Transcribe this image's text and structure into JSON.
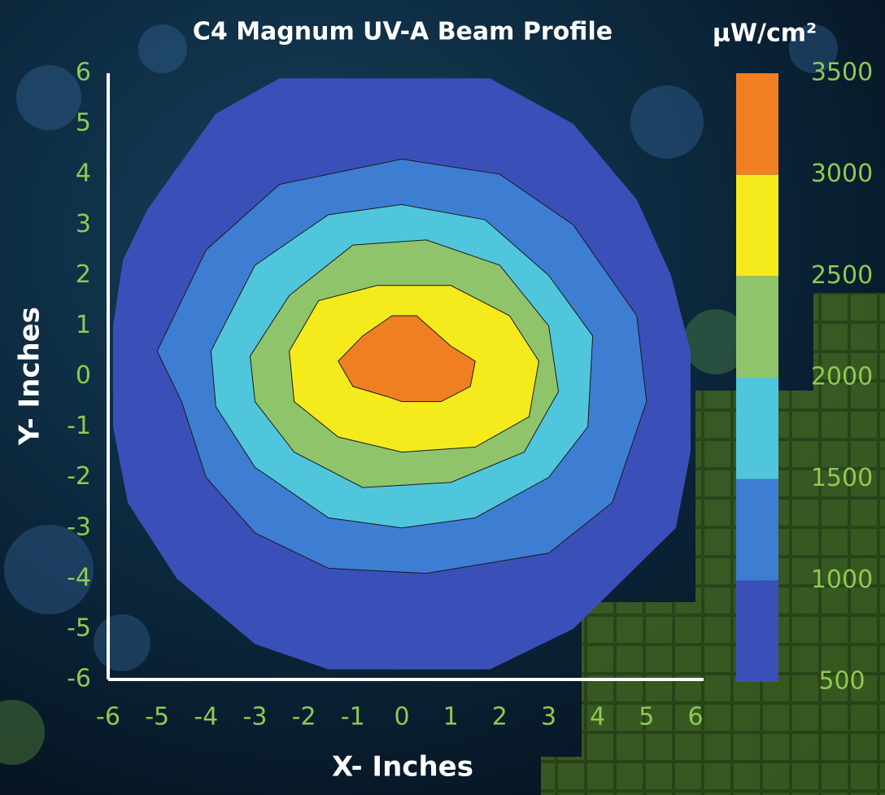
{
  "chart_data": {
    "type": "contour",
    "title": "C4 Magnum UV-A Beam Profile",
    "colorbar_label": "μW/cm²",
    "x_label": "X- Inches",
    "y_label": "Y- Inches",
    "xlim": [
      -6,
      6
    ],
    "ylim": [
      -6,
      6
    ],
    "xticks": [
      -6,
      -5,
      -4,
      -3,
      -2,
      -1,
      0,
      1,
      2,
      3,
      4,
      5,
      6
    ],
    "yticks": [
      -6,
      -5,
      -4,
      -3,
      -2,
      -1,
      0,
      1,
      2,
      3,
      4,
      5,
      6
    ],
    "colorbar_levels": [
      500,
      1000,
      1500,
      2000,
      2500,
      3000,
      3500
    ],
    "colorbar_colors": [
      "#3b4fb8",
      "#3d7ed2",
      "#4fc6dc",
      "#8fc46b",
      "#f5ea1c",
      "#f07f22"
    ],
    "regions": [
      {
        "level": 500,
        "color": "#3b4fb8",
        "x": [
          -1.5,
          1.8,
          3.5,
          5.6,
          5.9,
          5.9,
          5.5,
          4.8,
          3.5,
          1.8,
          -2.5,
          -3.8,
          -5.2,
          -5.7,
          -5.9,
          -5.9,
          -5.6,
          -4.6,
          -3
        ],
        "y": [
          -5.8,
          -5.8,
          -5,
          -3,
          -1.5,
          0.5,
          2,
          3.5,
          5,
          5.9,
          5.9,
          5.2,
          3.3,
          2.3,
          1,
          -1,
          -2.5,
          -4,
          -5.3
        ]
      },
      {
        "level": 1000,
        "color": "#3d7ed2",
        "x": [
          -5,
          -4,
          -2.5,
          0,
          2,
          3.5,
          4.8,
          5,
          4.3,
          3,
          0.5,
          -1.5,
          -3,
          -4,
          -4.5
        ],
        "y": [
          0.5,
          2.5,
          3.8,
          4.3,
          4,
          3,
          1.2,
          -0.5,
          -2.5,
          -3.5,
          -3.9,
          -3.8,
          -3.1,
          -2,
          -0.5
        ]
      },
      {
        "level": 1500,
        "color": "#4fc6dc",
        "x": [
          -3.9,
          -3,
          -1.5,
          0,
          1.7,
          3,
          3.9,
          3.8,
          3,
          1.5,
          0,
          -1.5,
          -3,
          -3.8
        ],
        "y": [
          0.5,
          2.2,
          3.2,
          3.4,
          3.1,
          2,
          0.8,
          -1,
          -2,
          -2.8,
          -3,
          -2.8,
          -1.8,
          -0.6
        ]
      },
      {
        "level": 2000,
        "color": "#8fc46b",
        "x": [
          -3.1,
          -2.3,
          -1,
          0.5,
          2,
          3,
          3.2,
          2.5,
          1,
          -0.8,
          -2.2,
          -3
        ],
        "y": [
          0.4,
          1.6,
          2.6,
          2.7,
          2.2,
          1,
          -0.3,
          -1.5,
          -2.1,
          -2.2,
          -1.5,
          -0.5
        ]
      },
      {
        "level": 2500,
        "color": "#f5ea1c",
        "x": [
          -2.3,
          -1.7,
          -0.5,
          1,
          2.2,
          2.8,
          2.6,
          1.5,
          0,
          -1.3,
          -2.2
        ],
        "y": [
          0.5,
          1.5,
          1.8,
          1.8,
          1.2,
          0.3,
          -0.8,
          -1.4,
          -1.5,
          -1.2,
          -0.5
        ]
      },
      {
        "level": 3000,
        "color": "#f07f22",
        "x": [
          -1.3,
          -0.8,
          -0.2,
          0.3,
          1,
          1.5,
          1.4,
          0.8,
          0,
          -0.3,
          -1
        ],
        "y": [
          0.3,
          0.8,
          1.2,
          1.2,
          0.6,
          0.3,
          -0.2,
          -0.5,
          -0.5,
          -0.4,
          -0.2
        ]
      }
    ]
  }
}
